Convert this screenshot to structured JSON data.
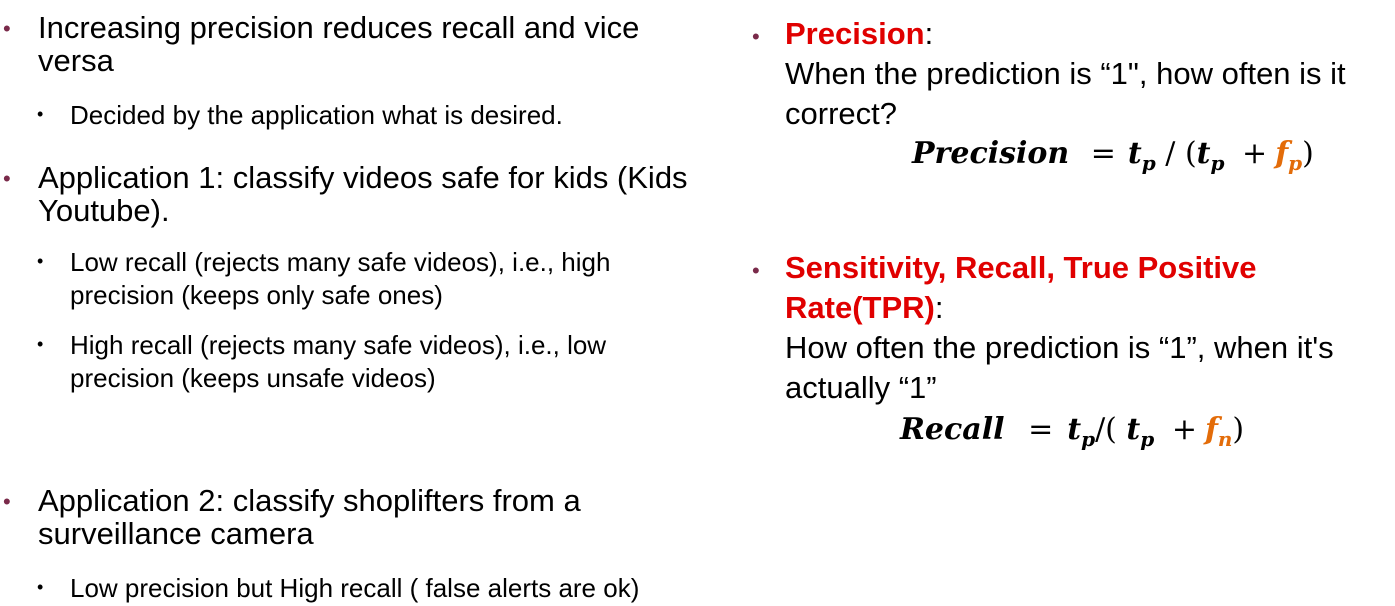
{
  "left": {
    "b1": "Increasing precision reduces recall and vice",
    "b1b": "versa",
    "b1s1": "Decided by the application what is desired.",
    "b2": "Application 1: classify videos safe for kids (Kids",
    "b2b": "Youtube).",
    "b2s1": "Low recall (rejects many safe videos), i.e., high",
    "b2s1b": "precision (keeps only safe ones)",
    "b2s2": "High recall (rejects many safe videos), i.e., low",
    "b2s2b": "precision (keeps unsafe videos)",
    "b3": "Application 2: classify shoplifters from a",
    "b3b": "surveillance camera",
    "b3s1": "Low precision but High recall ( false alerts are ok)"
  },
  "right": {
    "p_term": "Precision",
    "p_colon": ":",
    "p_desc1": "When the prediction is “1\", how often is it",
    "p_desc2": "correct?",
    "p_formula": {
      "lhs": "Precision",
      "eq": "=",
      "tp": "t",
      "sub_p": "p",
      "mid": " / (",
      "plus": "+",
      "fp": "f",
      "close": ")"
    },
    "r_term1": "Sensitivity, Recall, True Positive",
    "r_term2": "Rate(TPR)",
    "r_colon": ":",
    "r_desc1": "How often the prediction is “1”, when it's",
    "r_desc2": "actually “1”",
    "r_formula": {
      "lhs": "Recall",
      "eq": "=",
      "tp": "t",
      "sub_p": "p",
      "slash": "/(",
      "plus": "+",
      "fn": "f",
      "sub_n": "n",
      "close": ")"
    }
  },
  "colors": {
    "term": "#e00000",
    "bullet": "#7a2a4a",
    "false_term": "#e36c09"
  }
}
